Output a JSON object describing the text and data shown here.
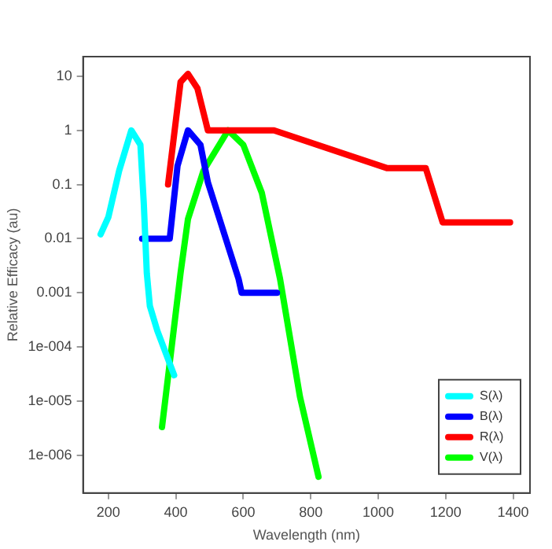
{
  "chart_data": {
    "type": "line",
    "xlabel": "Wavelength (nm)",
    "ylabel": "Relative Efficacy (au)",
    "xlim": [
      125,
      1450
    ],
    "xticks": [
      200,
      400,
      600,
      800,
      1000,
      1200,
      1400
    ],
    "ylim": [
      2e-07,
      23
    ],
    "yticks": [
      {
        "value": 10,
        "label": "10"
      },
      {
        "value": 1,
        "label": "1"
      },
      {
        "value": 0.1,
        "label": "0.1"
      },
      {
        "value": 0.01,
        "label": "0.01"
      },
      {
        "value": 0.001,
        "label": "0.001"
      },
      {
        "value": 0.0001,
        "label": "1e-004"
      },
      {
        "value": 1e-05,
        "label": "1e-005"
      },
      {
        "value": 1e-06,
        "label": "1e-006"
      }
    ],
    "log": "y",
    "grid": false,
    "legend": "bottom right",
    "marker": "none",
    "line_style": "solid",
    "series": [
      {
        "name": "S(λ)",
        "color": "#00ffff",
        "x": [
          177,
          200,
          232,
          268,
          295,
          305,
          314,
          323,
          345,
          395
        ],
        "values": [
          0.012,
          0.025,
          0.18,
          1,
          0.54,
          0.045,
          0.0023,
          0.00057,
          0.0002,
          3e-05
        ]
      },
      {
        "name": "B(λ)",
        "color": "#0000ff",
        "x": [
          300,
          382,
          405,
          436,
          473,
          495,
          586,
          595,
          700
        ],
        "values": [
          0.01,
          0.01,
          0.22,
          1,
          0.54,
          0.11,
          0.0018,
          0.001,
          0.001
        ]
      },
      {
        "name": "R(λ)",
        "color": "#ff0000",
        "x": [
          377,
          414,
          436,
          464,
          495,
          691,
          1027,
          1141,
          1191,
          1391
        ],
        "values": [
          0.1,
          7.8,
          11,
          6,
          1,
          1,
          0.2,
          0.2,
          0.02,
          0.02
        ]
      },
      {
        "name": "V(λ)",
        "color": "#00ff00",
        "x": [
          359,
          414,
          436,
          482,
          555,
          600,
          655,
          709,
          768,
          823
        ],
        "values": [
          3.3e-06,
          0.0023,
          0.023,
          0.18,
          1,
          0.54,
          0.07,
          0.0018,
          1.2e-05,
          4e-07
        ]
      }
    ]
  }
}
